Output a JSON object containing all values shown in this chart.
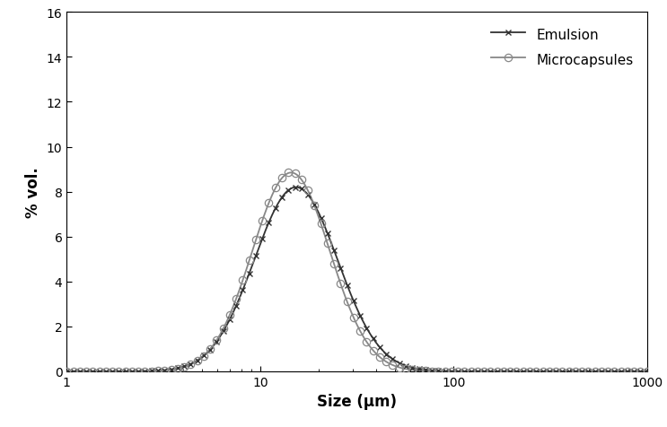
{
  "title": "",
  "xlabel": "Size (μm)",
  "ylabel": "% vol.",
  "xlim": [
    1,
    1000
  ],
  "ylim": [
    0,
    16
  ],
  "yticks": [
    0,
    2,
    4,
    6,
    8,
    10,
    12,
    14,
    16
  ],
  "emulsion_color": "#333333",
  "microcapsules_color": "#888888",
  "background_color": "#ffffff",
  "emulsion_label": "Emulsion",
  "microcapsules_label": "Microcapsules",
  "emulsion_mu_log": 1.185,
  "emulsion_sigma_log": 0.215,
  "emulsion_peak": 8.2,
  "microcapsules_mu_log": 1.16,
  "microcapsules_sigma_log": 0.2,
  "microcapsules_peak": 8.85,
  "n_markers": 90,
  "marker_size_emulsion": 4,
  "marker_size_microcapsules": 6,
  "linewidth": 1.3,
  "font_size_labels": 12,
  "font_size_ticks": 10,
  "legend_fontsize": 11,
  "figsize": [
    7.43,
    4.77
  ],
  "dpi": 100
}
